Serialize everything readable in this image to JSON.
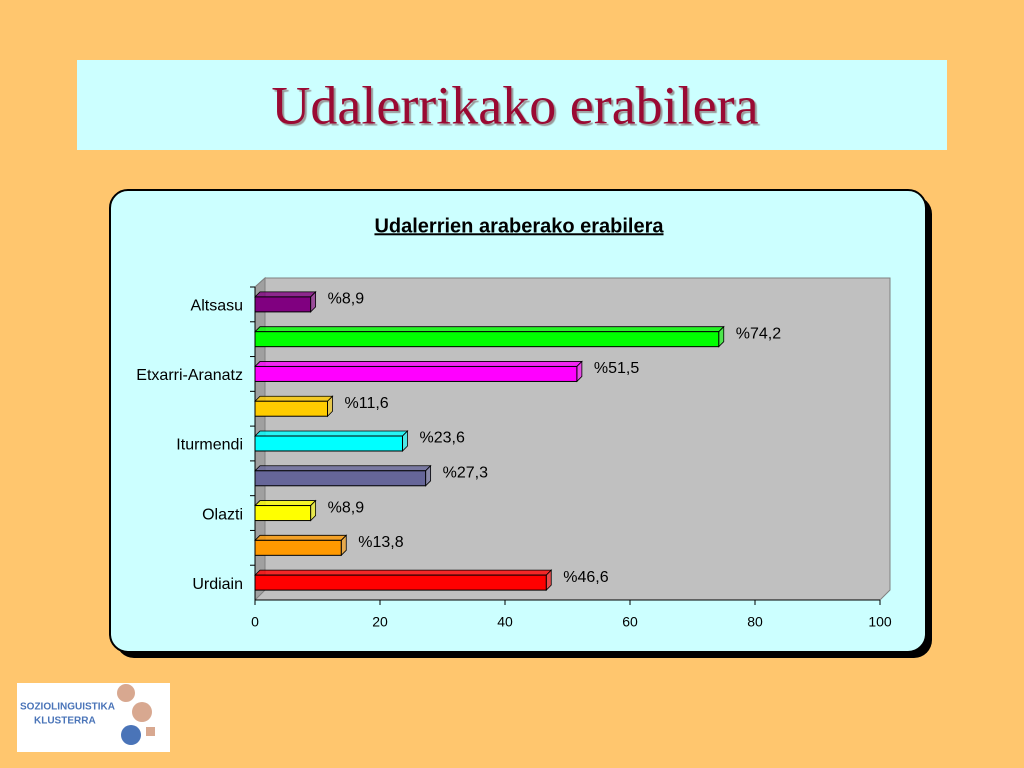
{
  "slide": {
    "title": "Udalerrikako erabilera"
  },
  "logo": {
    "lines": [
      "SOZIOLINGUISTIKA",
      "KLUSTERRA"
    ]
  },
  "chart_data": {
    "type": "hbar",
    "title": "Udalerrien araberako erabilera",
    "categories": [
      "Altsasu",
      null,
      "Etxarri-Aranatz",
      null,
      "Iturmendi",
      null,
      "Olazti",
      null,
      "Urdiain"
    ],
    "values": [
      8.9,
      74.2,
      51.5,
      11.6,
      23.6,
      27.3,
      8.9,
      13.8,
      46.6
    ],
    "value_labels": [
      "%8,9",
      "%74,2",
      "%51,5",
      "%11,6",
      "%23,6",
      "%27,3",
      "%8,9",
      "%13,8",
      "%46,6"
    ],
    "colors": [
      "#800080",
      "#00ff00",
      "#ff00ff",
      "#ffcc00",
      "#00ffff",
      "#666699",
      "#ffff00",
      "#ff9900",
      "#ff0000"
    ],
    "xlim": [
      0,
      100
    ],
    "xticks": [
      0,
      20,
      40,
      60,
      80,
      100
    ],
    "grid": false
  }
}
